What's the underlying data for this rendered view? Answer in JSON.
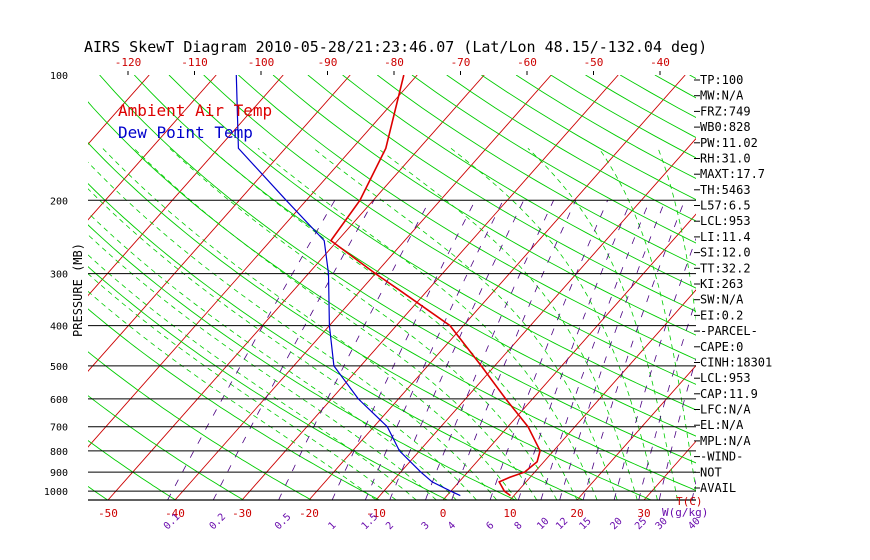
{
  "chart_data": {
    "type": "line",
    "title": "AIRS SkewT Diagram 2010-05-28/21:23:46.07 (Lat/Lon 48.15/-132.04 deg)",
    "ylabel": "PRESSURE (MB)",
    "xlabel": "T(C)",
    "mixing_ratio_unit": "W(g/kg)",
    "y_scale": "log",
    "ylim": [
      1050,
      100
    ],
    "xlim_bottom": [
      -55,
      45
    ],
    "pressure_ticks": [
      100,
      200,
      300,
      400,
      500,
      600,
      700,
      800,
      900,
      1000
    ],
    "pressure_lines": [
      200,
      300,
      400,
      500,
      600,
      700,
      800,
      900,
      1000
    ],
    "bottom_temp_ticks": [
      -50,
      -40,
      -30,
      -20,
      -10,
      0,
      10,
      20,
      30
    ],
    "top_temp_ticks": [
      -120,
      -110,
      -100,
      -90,
      -80,
      -70,
      -60,
      -50,
      -40
    ],
    "mixing_ratio_labels": [
      "0.1",
      "0.2",
      "0.5",
      "1",
      "1.5",
      "2",
      "3",
      "4",
      "6",
      "8",
      "10",
      "12",
      "15",
      "20",
      "25",
      "30",
      "40"
    ],
    "grid_colors": {
      "isotherm": "#cc0000",
      "dry_adiabat": "#00cc00",
      "moist_adiabat": "#00cc00",
      "mixing_ratio": "#4b0082",
      "isobar": "#000000",
      "temp_axis_labels": "#cc0000",
      "mixing_labels": "#6a0dad"
    },
    "series": [
      {
        "name": "Ambient Air Temp",
        "color": "#dd0000",
        "points": [
          {
            "p": 1025,
            "t": 9.5
          },
          {
            "p": 1000,
            "t": 8
          },
          {
            "p": 950,
            "t": 6
          },
          {
            "p": 925,
            "t": 7
          },
          {
            "p": 900,
            "t": 8.5
          },
          {
            "p": 850,
            "t": 9
          },
          {
            "p": 800,
            "t": 8
          },
          {
            "p": 700,
            "t": 3
          },
          {
            "p": 600,
            "t": -4
          },
          {
            "p": 500,
            "t": -12
          },
          {
            "p": 400,
            "t": -22
          },
          {
            "p": 330,
            "t": -34
          },
          {
            "p": 300,
            "t": -40
          },
          {
            "p": 250,
            "t": -51
          },
          {
            "p": 200,
            "t": -52
          },
          {
            "p": 150,
            "t": -55
          },
          {
            "p": 100,
            "t": -62
          }
        ]
      },
      {
        "name": "Dew Point Temp",
        "color": "#0000cc",
        "points": [
          {
            "p": 1025,
            "t": 2
          },
          {
            "p": 1000,
            "t": 0
          },
          {
            "p": 950,
            "t": -4
          },
          {
            "p": 900,
            "t": -7
          },
          {
            "p": 800,
            "t": -13
          },
          {
            "p": 700,
            "t": -18
          },
          {
            "p": 600,
            "t": -26
          },
          {
            "p": 500,
            "t": -34
          },
          {
            "p": 400,
            "t": -40
          },
          {
            "p": 300,
            "t": -47
          },
          {
            "p": 250,
            "t": -52
          },
          {
            "p": 200,
            "t": -63
          },
          {
            "p": 150,
            "t": -77
          },
          {
            "p": 100,
            "t": -87
          }
        ]
      }
    ],
    "legend": [
      "Ambient Air Temp",
      "Dew Point Temp"
    ],
    "legend_placement": "top-left",
    "indices": [
      "TP:100",
      "MW:N/A",
      "FRZ:749",
      "WB0:828",
      "PW:11.02",
      "RH:31.0",
      "MAXT:17.7",
      "TH:5463",
      "L57:6.5",
      "LCL:953",
      "LI:11.4",
      "SI:12.0",
      "TT:32.2",
      "KI:263",
      "SW:N/A",
      "EI:0.2",
      "-PARCEL-",
      "CAPE:0",
      "CINH:18301",
      "LCL:953",
      "CAP:11.9",
      "LFC:N/A",
      "EL:N/A",
      "MPL:N/A",
      "-WIND-",
      "NOT",
      "AVAIL"
    ]
  }
}
